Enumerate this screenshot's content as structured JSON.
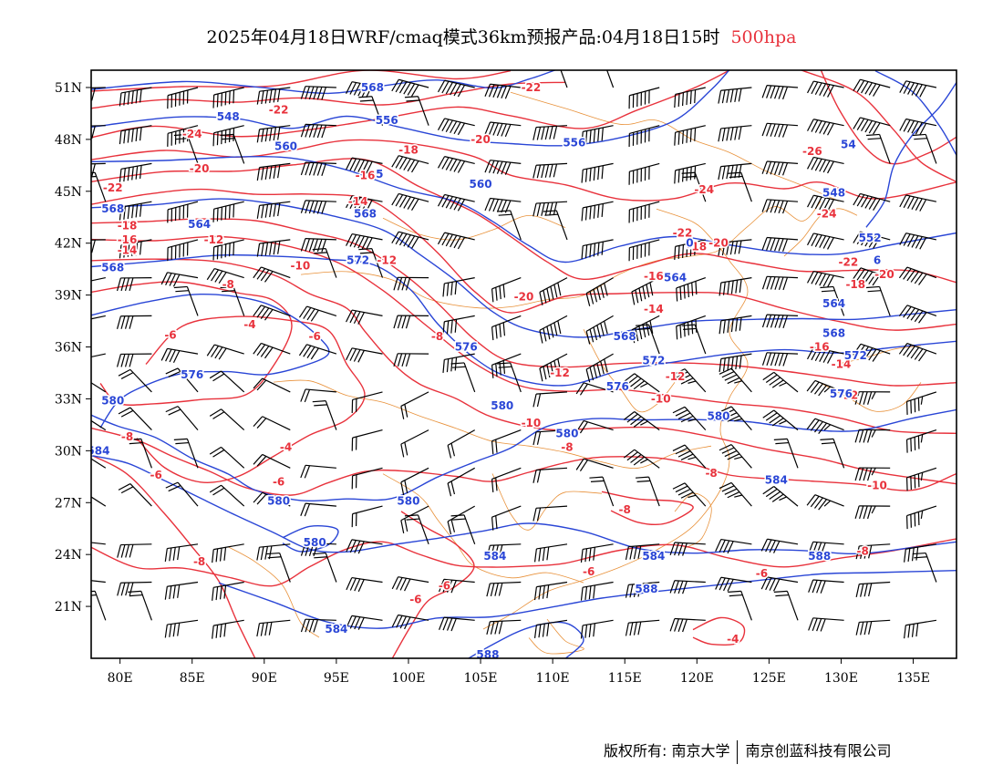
{
  "title": {
    "main": "2025年04月18日WRF/cmaq模式36km预报产品:04月18日15时",
    "level": "500hpa"
  },
  "colors": {
    "temperature_contour": "#e8323c",
    "height_contour": "#2a46d6",
    "boundaries": "#e8913a",
    "wind_barb": "#000000"
  },
  "map": {
    "extent": {
      "lon_min": 78,
      "lon_max": 138,
      "lat_min": 18,
      "lat_max": 52
    },
    "lon_ticks": [
      {
        "lon": 80,
        "label": "80E"
      },
      {
        "lon": 85,
        "label": "85E"
      },
      {
        "lon": 90,
        "label": "90E"
      },
      {
        "lon": 95,
        "label": "95E"
      },
      {
        "lon": 100,
        "label": "100E"
      },
      {
        "lon": 105,
        "label": "105E"
      },
      {
        "lon": 110,
        "label": "110E"
      },
      {
        "lon": 115,
        "label": "115E"
      },
      {
        "lon": 120,
        "label": "120E"
      },
      {
        "lon": 125,
        "label": "125E"
      },
      {
        "lon": 130,
        "label": "130E"
      },
      {
        "lon": 135,
        "label": "135E"
      }
    ],
    "lat_ticks": [
      {
        "lat": 51,
        "label": "51N"
      },
      {
        "lat": 48,
        "label": "48N"
      },
      {
        "lat": 45,
        "label": "45N"
      },
      {
        "lat": 42,
        "label": "42N"
      },
      {
        "lat": 39,
        "label": "39N"
      },
      {
        "lat": 36,
        "label": "36N"
      },
      {
        "lat": 33,
        "label": "33N"
      },
      {
        "lat": 30,
        "label": "30N"
      },
      {
        "lat": 27,
        "label": "27N"
      },
      {
        "lat": 24,
        "label": "24N"
      },
      {
        "lat": 21,
        "label": "21N"
      }
    ],
    "temperature_labels": [
      {
        "lon": 108.5,
        "lat": 51.0,
        "text": "-22"
      },
      {
        "lon": 91.0,
        "lat": 49.7,
        "text": "-22"
      },
      {
        "lon": 85.0,
        "lat": 48.3,
        "text": "-24"
      },
      {
        "lon": 105.0,
        "lat": 48.0,
        "text": "-20"
      },
      {
        "lon": 100.0,
        "lat": 47.4,
        "text": "-18"
      },
      {
        "lon": 85.5,
        "lat": 46.3,
        "text": "-20"
      },
      {
        "lon": 79.5,
        "lat": 45.2,
        "text": "-22"
      },
      {
        "lon": 97.0,
        "lat": 45.9,
        "text": "-16"
      },
      {
        "lon": 96.5,
        "lat": 44.4,
        "text": "-14"
      },
      {
        "lon": 80.5,
        "lat": 43.0,
        "text": "-18"
      },
      {
        "lon": 80.5,
        "lat": 42.2,
        "text": "-16"
      },
      {
        "lon": 80.5,
        "lat": 41.6,
        "text": "-14"
      },
      {
        "lon": 86.5,
        "lat": 42.2,
        "text": "-12"
      },
      {
        "lon": 98.5,
        "lat": 41.0,
        "text": "-12"
      },
      {
        "lon": 92.5,
        "lat": 40.7,
        "text": "-10"
      },
      {
        "lon": 87.5,
        "lat": 39.6,
        "text": "-8"
      },
      {
        "lon": 108.0,
        "lat": 38.9,
        "text": "-20"
      },
      {
        "lon": 119.0,
        "lat": 42.6,
        "text": "-22"
      },
      {
        "lon": 120.0,
        "lat": 41.8,
        "text": "-18"
      },
      {
        "lon": 121.5,
        "lat": 42.0,
        "text": "-20"
      },
      {
        "lon": 120.5,
        "lat": 45.1,
        "text": "-24"
      },
      {
        "lon": 128.0,
        "lat": 47.3,
        "text": "-26"
      },
      {
        "lon": 129.0,
        "lat": 43.7,
        "text": "-24"
      },
      {
        "lon": 130.5,
        "lat": 40.9,
        "text": "-22"
      },
      {
        "lon": 133.0,
        "lat": 40.2,
        "text": "-20"
      },
      {
        "lon": 131.0,
        "lat": 39.6,
        "text": "-18"
      },
      {
        "lon": 117.0,
        "lat": 40.1,
        "text": "-16"
      },
      {
        "lon": 117.0,
        "lat": 38.2,
        "text": "-14"
      },
      {
        "lon": 128.5,
        "lat": 36.0,
        "text": "-16"
      },
      {
        "lon": 130.0,
        "lat": 35.0,
        "text": "-14"
      },
      {
        "lon": 130.5,
        "lat": 33.2,
        "text": "-12"
      },
      {
        "lon": 83.5,
        "lat": 36.7,
        "text": "-6"
      },
      {
        "lon": 89.0,
        "lat": 37.3,
        "text": "-4"
      },
      {
        "lon": 93.5,
        "lat": 36.6,
        "text": "-6"
      },
      {
        "lon": 102.0,
        "lat": 36.6,
        "text": "-8"
      },
      {
        "lon": 110.5,
        "lat": 34.5,
        "text": "-12"
      },
      {
        "lon": 118.5,
        "lat": 34.3,
        "text": "-12"
      },
      {
        "lon": 117.5,
        "lat": 33.0,
        "text": "-10"
      },
      {
        "lon": 108.5,
        "lat": 31.6,
        "text": "-10"
      },
      {
        "lon": 111.0,
        "lat": 30.2,
        "text": "-8"
      },
      {
        "lon": 91.5,
        "lat": 30.2,
        "text": "-4"
      },
      {
        "lon": 80.5,
        "lat": 30.8,
        "text": "-8"
      },
      {
        "lon": 82.5,
        "lat": 28.6,
        "text": "-6"
      },
      {
        "lon": 91.0,
        "lat": 28.2,
        "text": "-6"
      },
      {
        "lon": 121.0,
        "lat": 28.7,
        "text": "-8"
      },
      {
        "lon": 132.5,
        "lat": 28.0,
        "text": "-10"
      },
      {
        "lon": 115.0,
        "lat": 26.6,
        "text": "-8"
      },
      {
        "lon": 85.5,
        "lat": 23.6,
        "text": "-8"
      },
      {
        "lon": 102.5,
        "lat": 22.2,
        "text": "-6"
      },
      {
        "lon": 100.5,
        "lat": 21.4,
        "text": "-6"
      },
      {
        "lon": 112.5,
        "lat": 23.0,
        "text": "-6"
      },
      {
        "lon": 124.5,
        "lat": 22.9,
        "text": "-6"
      },
      {
        "lon": 131.5,
        "lat": 24.2,
        "text": "-8"
      },
      {
        "lon": 122.5,
        "lat": 19.1,
        "text": "-4"
      }
    ],
    "height_labels": [
      {
        "lon": 97.5,
        "lat": 51.0,
        "text": "568"
      },
      {
        "lon": 87.5,
        "lat": 49.3,
        "text": "548"
      },
      {
        "lon": 98.5,
        "lat": 49.1,
        "text": "556"
      },
      {
        "lon": 91.5,
        "lat": 47.6,
        "text": "560"
      },
      {
        "lon": 111.5,
        "lat": 47.8,
        "text": "556"
      },
      {
        "lon": 98.0,
        "lat": 46.0,
        "text": "5"
      },
      {
        "lon": 105.0,
        "lat": 45.4,
        "text": "560"
      },
      {
        "lon": 79.5,
        "lat": 44.0,
        "text": "568"
      },
      {
        "lon": 85.5,
        "lat": 43.1,
        "text": "564"
      },
      {
        "lon": 97.0,
        "lat": 43.7,
        "text": "568"
      },
      {
        "lon": 96.5,
        "lat": 41.0,
        "text": "572"
      },
      {
        "lon": 79.5,
        "lat": 40.6,
        "text": "568"
      },
      {
        "lon": 119.5,
        "lat": 42.0,
        "text": "0"
      },
      {
        "lon": 118.5,
        "lat": 40.0,
        "text": "564"
      },
      {
        "lon": 130.5,
        "lat": 47.7,
        "text": "54"
      },
      {
        "lon": 129.5,
        "lat": 44.9,
        "text": "548"
      },
      {
        "lon": 132.0,
        "lat": 42.3,
        "text": "552"
      },
      {
        "lon": 132.5,
        "lat": 41.0,
        "text": "6"
      },
      {
        "lon": 129.5,
        "lat": 38.5,
        "text": "564"
      },
      {
        "lon": 129.5,
        "lat": 36.8,
        "text": "568"
      },
      {
        "lon": 131.0,
        "lat": 35.5,
        "text": "572"
      },
      {
        "lon": 130.0,
        "lat": 33.3,
        "text": "576"
      },
      {
        "lon": 115.0,
        "lat": 36.6,
        "text": "568"
      },
      {
        "lon": 117.0,
        "lat": 35.2,
        "text": "572"
      },
      {
        "lon": 104.0,
        "lat": 36.0,
        "text": "576"
      },
      {
        "lon": 85.0,
        "lat": 34.4,
        "text": "576"
      },
      {
        "lon": 114.5,
        "lat": 33.7,
        "text": "576"
      },
      {
        "lon": 79.5,
        "lat": 32.9,
        "text": "580"
      },
      {
        "lon": 106.5,
        "lat": 32.6,
        "text": "580"
      },
      {
        "lon": 121.5,
        "lat": 32.0,
        "text": "580"
      },
      {
        "lon": 111.0,
        "lat": 31.0,
        "text": "580"
      },
      {
        "lon": 78.5,
        "lat": 30.0,
        "text": "584"
      },
      {
        "lon": 125.5,
        "lat": 28.3,
        "text": "584"
      },
      {
        "lon": 91.0,
        "lat": 27.1,
        "text": "580"
      },
      {
        "lon": 100.0,
        "lat": 27.1,
        "text": "580"
      },
      {
        "lon": 93.5,
        "lat": 24.7,
        "text": "580"
      },
      {
        "lon": 106.0,
        "lat": 23.9,
        "text": "584"
      },
      {
        "lon": 117.0,
        "lat": 23.9,
        "text": "584"
      },
      {
        "lon": 128.5,
        "lat": 23.9,
        "text": "588"
      },
      {
        "lon": 116.5,
        "lat": 22.0,
        "text": "588"
      },
      {
        "lon": 95.0,
        "lat": 19.7,
        "text": "584"
      },
      {
        "lon": 105.5,
        "lat": 18.2,
        "text": "588"
      }
    ]
  },
  "footer": {
    "copyright_left": "版权所有: 南京大学",
    "copyright_right": "南京创蓝科技有限公司"
  }
}
